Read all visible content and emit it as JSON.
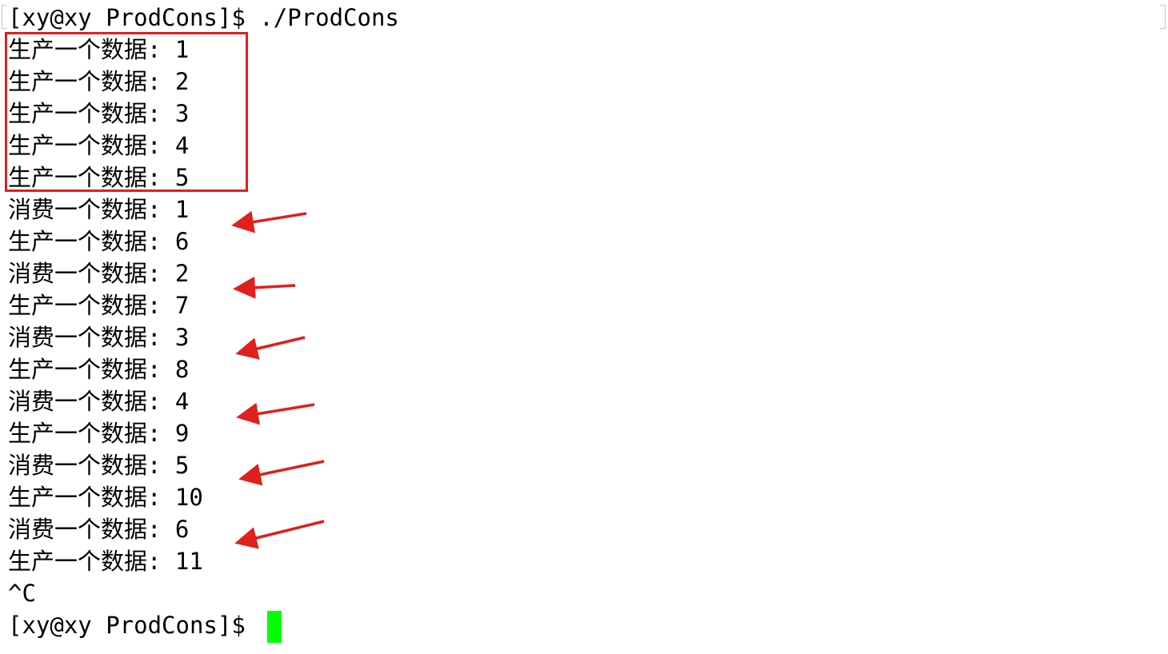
{
  "terminal": {
    "prompt_first": "[xy@xy ProdCons]$ ./ProdCons",
    "lines": [
      "生产一个数据: 1",
      "生产一个数据: 2",
      "生产一个数据: 3",
      "生产一个数据: 4",
      "生产一个数据: 5",
      "消费一个数据: 1",
      "生产一个数据: 6",
      "消费一个数据: 2",
      "生产一个数据: 7",
      "消费一个数据: 3",
      "生产一个数据: 8",
      "消费一个数据: 4",
      "生产一个数据: 9",
      "消费一个数据: 5",
      "生产一个数据: 10",
      "消费一个数据: 6",
      "生产一个数据: 11"
    ],
    "interrupt": "^C",
    "prompt_last": "[xy@xy ProdCons]$ "
  },
  "annotation": {
    "color": "#e0201c",
    "cursor_color": "#00ff00"
  }
}
